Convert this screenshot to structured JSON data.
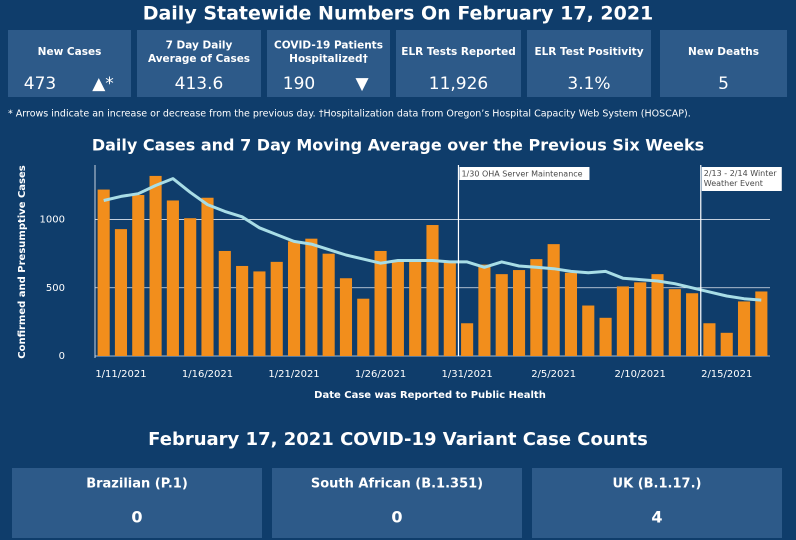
{
  "header": {
    "title": "Daily Statewide Numbers On February 17, 2021"
  },
  "cards": [
    {
      "label": "New Cases",
      "value": "473",
      "indicator": "▲*"
    },
    {
      "label": "7 Day Daily Average of Cases",
      "value": "413.6"
    },
    {
      "label": "COVID-19 Patients Hospitalized†",
      "value": "190",
      "indicator": "▼"
    },
    {
      "label": "ELR Tests Reported",
      "value": "11,926"
    },
    {
      "label": "ELR Test Positivity",
      "value": "3.1%"
    },
    {
      "label": "New Deaths",
      "value": "5"
    }
  ],
  "note": "* Arrows indicate an increase or decrease from the previous day. †Hospitalization data from Oregon’s Hospital Capacity Web System (HOSCAP).",
  "chart_data": {
    "type": "bar",
    "title": "Daily Cases and 7 Day Moving Average over the Previous Six Weeks",
    "x_label": "Date Case was Reported to Public Health",
    "y_label": "Confirmed and Presumptive Cases",
    "categories": [
      null,
      "1/11/2021",
      null,
      null,
      null,
      null,
      "1/16/2021",
      null,
      null,
      null,
      null,
      "1/21/2021",
      null,
      null,
      null,
      null,
      "1/26/2021",
      null,
      null,
      null,
      null,
      "1/31/2021",
      null,
      null,
      null,
      null,
      "2/5/2021",
      null,
      null,
      null,
      null,
      "2/10/2021",
      null,
      null,
      null,
      null,
      "2/15/2021",
      null,
      null
    ],
    "series": [
      {
        "type": "bar",
        "color": "#f28e1c",
        "values": [
          1220,
          930,
          1180,
          1320,
          1140,
          1010,
          1160,
          770,
          660,
          620,
          690,
          840,
          860,
          750,
          570,
          420,
          770,
          690,
          710,
          960,
          700,
          240,
          670,
          600,
          630,
          710,
          820,
          610,
          370,
          280,
          510,
          540,
          600,
          490,
          460,
          240,
          170,
          400,
          473
        ]
      },
      {
        "type": "line",
        "color": "#a8dde6",
        "values": [
          1140,
          1170,
          1190,
          1250,
          1300,
          1200,
          1110,
          1060,
          1020,
          940,
          890,
          840,
          820,
          780,
          740,
          710,
          680,
          700,
          700,
          700,
          690,
          690,
          650,
          690,
          660,
          650,
          640,
          620,
          610,
          620,
          570,
          560,
          550,
          530,
          500,
          470,
          440,
          420,
          410
        ]
      }
    ],
    "annotations": [
      "1/30 OHA Server Maintenance",
      "2/13 - 2/14 Winter Weather Event"
    ],
    "ylim": [
      0,
      1400
    ],
    "yticks": [
      0,
      500,
      1000
    ],
    "grid": true
  },
  "variants": {
    "title": "February 17, 2021 COVID-19 Variant Case Counts",
    "cards": [
      {
        "label": "Brazilian (P.1)",
        "value": "0"
      },
      {
        "label": "South African (B.1.351)",
        "value": "0"
      },
      {
        "label": "UK (B.1.17.)",
        "value": "4"
      }
    ]
  }
}
